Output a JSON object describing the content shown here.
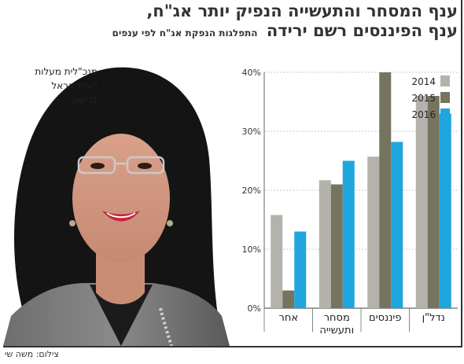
{
  "headline": {
    "line1": "ענף המסחר והתעשייה הנפיק יותר אג\"ח,",
    "line2": "ענף הפיננסים רשם ירידה",
    "subtitle": "התפלגות הנפקת אג\"ח לפי ענפים"
  },
  "caption": {
    "title": "מנכ\"לית מעלות",
    "name_line1": "רונית הראל",
    "name_line2": "בן־זאב"
  },
  "credit": "צילום: משה שי",
  "chart_data": {
    "type": "bar",
    "categories": [
      "נדל\"ן",
      "פיננסים",
      "מסחר ותעשייה",
      "אחר"
    ],
    "category_lines": [
      [
        "נדל\"ן"
      ],
      [
        "פיננסים"
      ],
      [
        "מסחר",
        "ותעשייה"
      ],
      [
        "אחר"
      ]
    ],
    "series": [
      {
        "name": "2014",
        "values": [
          36,
          25.7,
          21.7,
          15.8
        ],
        "color": "#b3b2ad"
      },
      {
        "name": "2015",
        "values": [
          36,
          40,
          21,
          3
        ],
        "color": "#76745f"
      },
      {
        "name": "2016",
        "values": [
          33,
          28.2,
          25,
          13
        ],
        "color": "#1fa6de"
      }
    ],
    "y_ticks": [
      "0%",
      "10%",
      "20%",
      "30%",
      "40%"
    ],
    "ylim": [
      0,
      40
    ],
    "grid": true,
    "legend": "top-right"
  },
  "colors": {
    "text": "#222222",
    "grid": "#c8c8c8"
  }
}
